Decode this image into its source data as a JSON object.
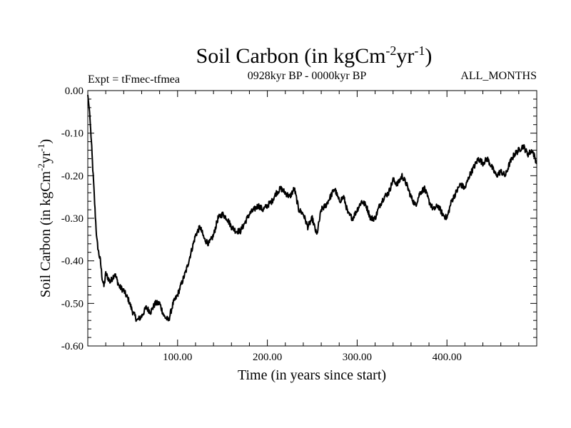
{
  "chart_data": {
    "type": "line",
    "title": {
      "main": "Soil Carbon (in kgCm",
      "exp1": "-2",
      "mid": "yr",
      "exp2": "-1",
      "close": ")"
    },
    "subtitle_left": "Expt = tFmec-tfmea",
    "subtitle_center": "0928kyr BP - 0000kyr BP",
    "subtitle_right": "ALL_MONTHS",
    "xlabel": "Time (in years since start)",
    "ylabel": {
      "main": "Soil Carbon (in kgCm",
      "exp1": "-2",
      "mid": "yr",
      "exp2": "-1",
      "close": ")"
    },
    "xlim": [
      0,
      500
    ],
    "ylim": [
      -0.6,
      0.0
    ],
    "x_major_ticks": [
      100,
      200,
      300,
      400
    ],
    "x_tick_labels": [
      "100.00",
      "200.00",
      "300.00",
      "400.00"
    ],
    "y_major_ticks": [
      0.0,
      -0.1,
      -0.2,
      -0.3,
      -0.4,
      -0.5,
      -0.6
    ],
    "y_tick_labels": [
      "0.00",
      "-0.10",
      "-0.20",
      "-0.30",
      "-0.40",
      "-0.50",
      "-0.60"
    ],
    "series": [
      {
        "name": "Soil Carbon",
        "color": "#000000",
        "x": [
          0,
          2,
          4,
          6,
          8,
          10,
          12,
          14,
          16,
          18,
          20,
          25,
          30,
          35,
          40,
          45,
          50,
          55,
          60,
          65,
          70,
          75,
          80,
          85,
          90,
          95,
          100,
          105,
          110,
          115,
          120,
          125,
          130,
          135,
          140,
          145,
          150,
          155,
          160,
          165,
          170,
          175,
          180,
          185,
          190,
          195,
          200,
          205,
          210,
          215,
          220,
          225,
          230,
          235,
          240,
          245,
          250,
          255,
          260,
          265,
          270,
          275,
          280,
          285,
          290,
          295,
          300,
          305,
          310,
          315,
          320,
          325,
          330,
          335,
          340,
          345,
          350,
          355,
          360,
          365,
          370,
          375,
          380,
          385,
          390,
          395,
          400,
          405,
          410,
          415,
          420,
          425,
          430,
          435,
          440,
          445,
          450,
          455,
          460,
          465,
          470,
          475,
          480,
          485,
          490,
          495,
          500
        ],
        "y": [
          -0.01,
          -0.05,
          -0.12,
          -0.2,
          -0.28,
          -0.35,
          -0.38,
          -0.4,
          -0.44,
          -0.46,
          -0.43,
          -0.45,
          -0.43,
          -0.46,
          -0.47,
          -0.49,
          -0.52,
          -0.54,
          -0.53,
          -0.51,
          -0.52,
          -0.5,
          -0.5,
          -0.53,
          -0.54,
          -0.5,
          -0.48,
          -0.45,
          -0.42,
          -0.38,
          -0.34,
          -0.32,
          -0.35,
          -0.36,
          -0.34,
          -0.3,
          -0.29,
          -0.3,
          -0.32,
          -0.33,
          -0.33,
          -0.31,
          -0.29,
          -0.28,
          -0.27,
          -0.28,
          -0.27,
          -0.26,
          -0.24,
          -0.23,
          -0.24,
          -0.25,
          -0.23,
          -0.28,
          -0.29,
          -0.32,
          -0.3,
          -0.34,
          -0.28,
          -0.27,
          -0.25,
          -0.23,
          -0.26,
          -0.25,
          -0.29,
          -0.3,
          -0.28,
          -0.26,
          -0.27,
          -0.3,
          -0.3,
          -0.27,
          -0.25,
          -0.24,
          -0.21,
          -0.22,
          -0.2,
          -0.22,
          -0.25,
          -0.27,
          -0.24,
          -0.23,
          -0.26,
          -0.28,
          -0.27,
          -0.29,
          -0.3,
          -0.26,
          -0.24,
          -0.22,
          -0.23,
          -0.2,
          -0.18,
          -0.16,
          -0.17,
          -0.16,
          -0.18,
          -0.2,
          -0.19,
          -0.2,
          -0.17,
          -0.15,
          -0.14,
          -0.13,
          -0.15,
          -0.14,
          -0.17
        ]
      }
    ]
  }
}
